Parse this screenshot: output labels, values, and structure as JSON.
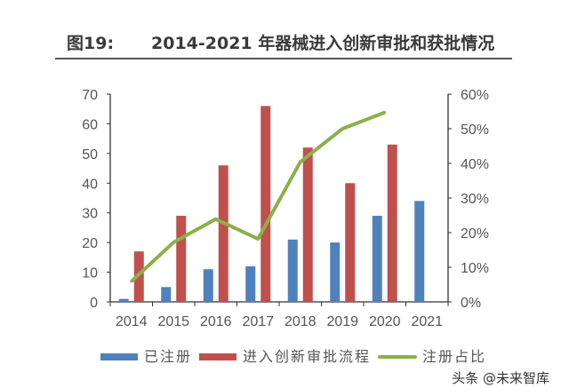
{
  "title_prefix": "图19:",
  "title": "2014-2021 年器械进入创新审批和获批情况",
  "watermark": "头条 @未来智库",
  "chart_data": {
    "type": "bar",
    "categories": [
      "2014",
      "2015",
      "2016",
      "2017",
      "2018",
      "2019",
      "2020",
      "2021"
    ],
    "series": [
      {
        "name": "已注册",
        "type": "bar",
        "axis": "left",
        "color": "#4f81bd",
        "values": [
          1,
          5,
          11,
          12,
          21,
          20,
          29,
          34
        ]
      },
      {
        "name": "进入创新审批流程",
        "type": "bar",
        "axis": "left",
        "color": "#c0504d",
        "values": [
          17,
          29,
          46,
          66,
          52,
          40,
          53,
          null
        ]
      },
      {
        "name": "注册占比",
        "type": "line",
        "axis": "right",
        "color": "#8cb04a",
        "values": [
          5.9,
          17.2,
          23.9,
          18.2,
          40.4,
          50.0,
          54.7,
          null
        ]
      }
    ],
    "ylim": [
      0,
      70
    ],
    "yticks": [
      "0",
      "10",
      "20",
      "30",
      "40",
      "50",
      "60",
      "70"
    ],
    "y2lim": [
      0,
      60
    ],
    "y2ticks": [
      "0%",
      "10%",
      "20%",
      "30%",
      "40%",
      "50%",
      "60%"
    ],
    "grid": false,
    "legend": "bottom"
  }
}
